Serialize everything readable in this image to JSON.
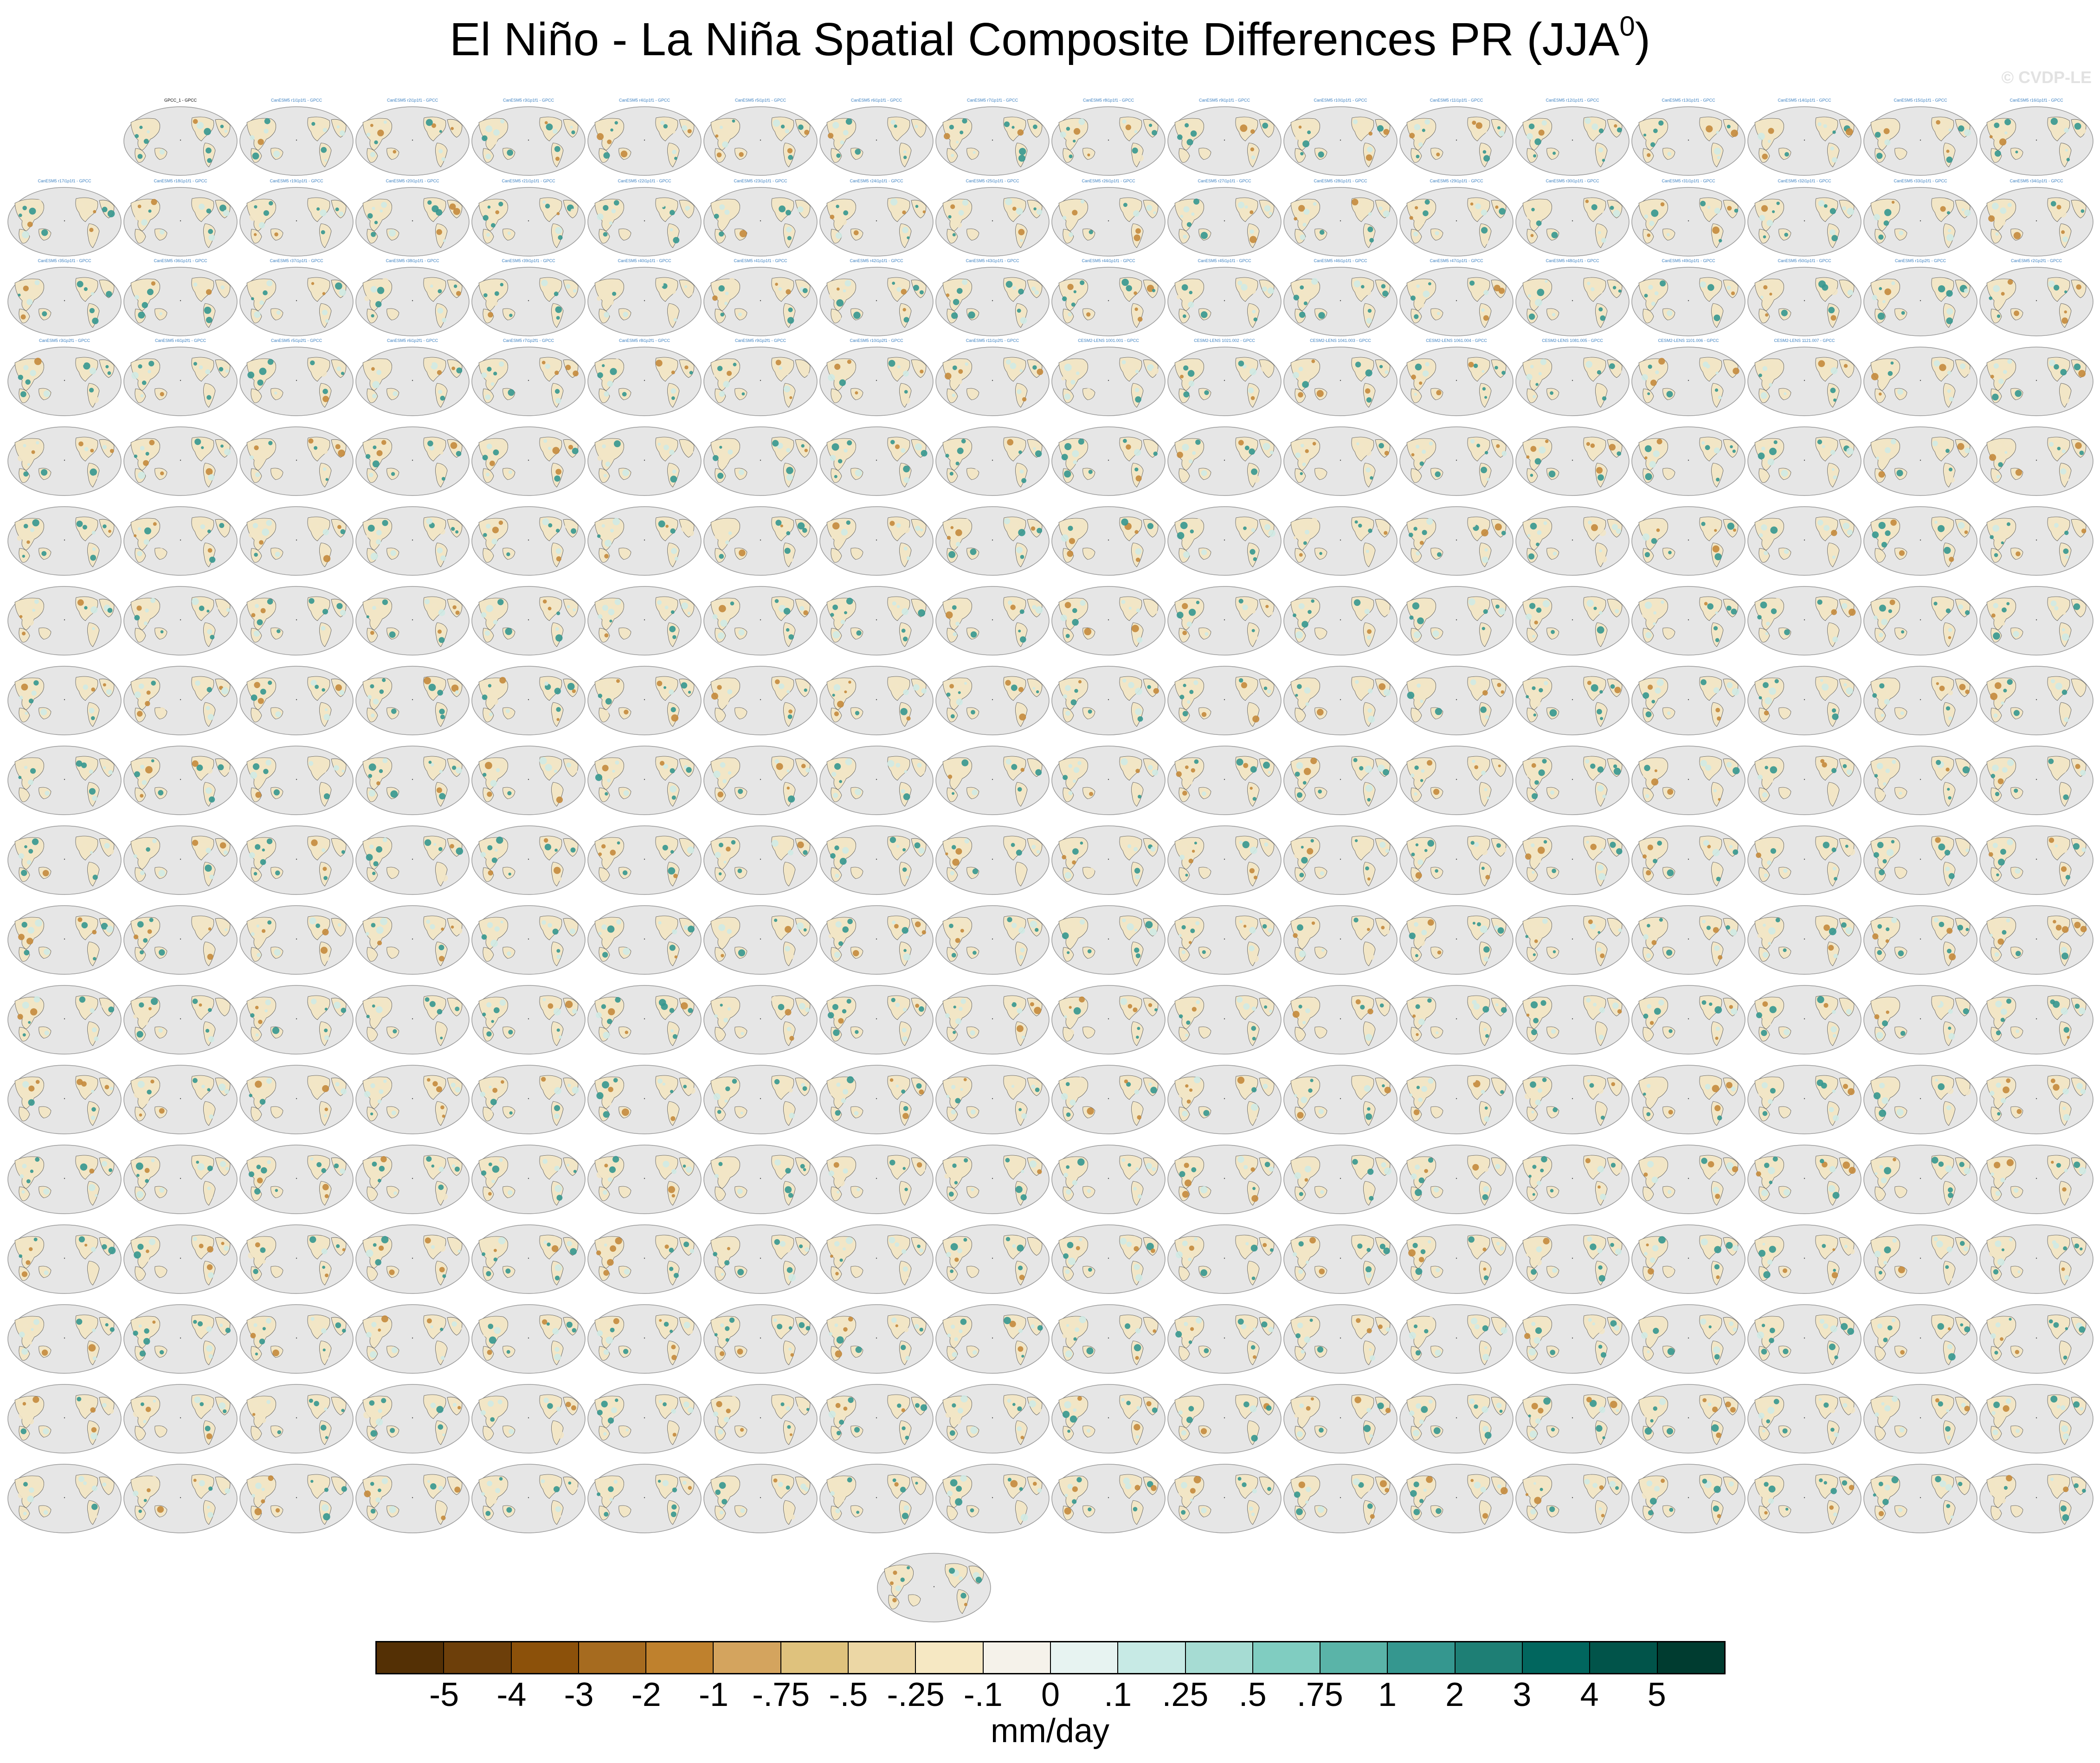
{
  "title": "El Niño - La Niña Spatial Composite Differences PR (JJA",
  "title_sup": "0",
  "title_close": ")",
  "copyright": "© CVDP-LE",
  "units": "mm/day",
  "colorbar": {
    "tick_labels": [
      "-5",
      "-4",
      "-3",
      "-2",
      "-1",
      "-.75",
      "-.5",
      "-.25",
      "-.1",
      "0",
      ".1",
      ".25",
      ".5",
      ".75",
      "1",
      "2",
      "3",
      "4",
      "5"
    ],
    "colors": [
      "#543005",
      "#6d3f0a",
      "#8c510a",
      "#a66b1f",
      "#bf812d",
      "#d4a45e",
      "#dfc27d",
      "#ecd7a5",
      "#f6e8c3",
      "#f5f2ea",
      "#e7f3f1",
      "#c7eae5",
      "#a6dcd3",
      "#80cdc1",
      "#5ab4a8",
      "#35978f",
      "#1e7f75",
      "#01665e",
      "#01544a",
      "#003c30"
    ]
  },
  "map_colors": {
    "ocean": "#e6e6e6",
    "outline": "#9a9a9a",
    "land_dry": "#c48a3c",
    "land_wet": "#35978f",
    "land_light": "#cfeae4",
    "land_pale": "#f2e6c6"
  },
  "panels": {
    "observation": "GPCC_1 - GPCC",
    "label_colors": {
      "obs": "#000000",
      "cesm2": "#3a7fc0",
      "cesm1": "#999999",
      "canesm": "#888888",
      "giss": "#b04030",
      "ipsl": "#6a5acd",
      "miroc": "#e0a070"
    },
    "model_labels": [
      "CanESM5 r1i1p1f1 - GPCC",
      "CanESM5 r2i1p1f1 - GPCC",
      "CanESM5 r3i1p1f1 - GPCC",
      "CanESM5 r4i1p1f1 - GPCC",
      "CanESM5 r5i1p1f1 - GPCC",
      "CanESM5 r6i1p1f1 - GPCC",
      "CanESM5 r7i1p1f1 - GPCC",
      "CanESM5 r8i1p1f1 - GPCC",
      "CanESM5 r9i1p1f1 - GPCC",
      "CanESM5 r10i1p1f1 - GPCC",
      "CanESM5 r11i1p1f1 - GPCC",
      "CanESM5 r12i1p1f1 - GPCC",
      "CanESM5 r13i1p1f1 - GPCC",
      "CanESM5 r14i1p1f1 - GPCC",
      "CanESM5 r15i1p1f1 - GPCC",
      "CanESM5 r16i1p1f1 - GPCC",
      "CanESM5 r17i1p1f1 - GPCC",
      "CanESM5 r18i1p1f1 - GPCC",
      "CanESM5 r19i1p1f1 - GPCC",
      "CanESM5 r20i1p1f1 - GPCC",
      "CanESM5 r21i1p1f1 - GPCC",
      "CanESM5 r22i1p1f1 - GPCC",
      "CanESM5 r23i1p1f1 - GPCC",
      "CanESM5 r24i1p1f1 - GPCC",
      "CanESM5 r25i1p1f1 - GPCC",
      "CanESM5 r26i1p1f1 - GPCC",
      "CanESM5 r27i1p1f1 - GPCC",
      "CanESM5 r28i1p1f1 - GPCC",
      "CanESM5 r29i1p1f1 - GPCC",
      "CanESM5 r30i1p1f1 - GPCC",
      "CanESM5 r31i1p1f1 - GPCC",
      "CanESM5 r32i1p1f1 - GPCC",
      "CanESM5 r33i1p1f1 - GPCC",
      "CanESM5 r34i1p1f1 - GPCC",
      "CanESM5 r35i1p1f1 - GPCC",
      "CanESM5 r36i1p1f1 - GPCC",
      "CanESM5 r37i1p1f1 - GPCC",
      "CanESM5 r38i1p1f1 - GPCC",
      "CanESM5 r39i1p1f1 - GPCC",
      "CanESM5 r40i1p1f1 - GPCC",
      "CanESM5 r41i1p1f1 - GPCC",
      "CanESM5 r42i1p1f1 - GPCC",
      "CanESM5 r43i1p1f1 - GPCC",
      "CanESM5 r44i1p1f1 - GPCC",
      "CanESM5 r45i1p1f1 - GPCC",
      "CanESM5 r46i1p1f1 - GPCC",
      "CanESM5 r47i1p1f1 - GPCC",
      "CanESM5 r48i1p1f1 - GPCC",
      "CanESM5 r49i1p1f1 - GPCC",
      "CanESM5 r50i1p1f1 - GPCC",
      "CanESM5 r1i1p2f1 - GPCC",
      "CanESM5 r2i1p2f1 - GPCC",
      "CanESM5 r3i1p2f1 - GPCC",
      "CanESM5 r4i1p2f1 - GPCC",
      "CanESM5 r5i1p2f1 - GPCC",
      "CanESM5 r6i1p2f1 - GPCC",
      "CanESM5 r7i1p2f1 - GPCC",
      "CanESM5 r8i1p2f1 - GPCC",
      "CanESM5 r9i1p2f1 - GPCC",
      "CanESM5 r10i1p2f1 - GPCC",
      "CanESM5 r11i1p2f1 - GPCC",
      "CESM2-LENS 1001.001 - GPCC",
      "CESM2-LENS 1021.002 - GPCC",
      "CESM2-LENS 1041.003 - GPCC",
      "CESM2-LENS 1061.004 - GPCC",
      "CESM2-LENS 1081.005 - GPCC",
      "CESM2-LENS 1101.006 - GPCC",
      "CESM2-LENS 1121.007 - GPCC"
    ]
  }
}
